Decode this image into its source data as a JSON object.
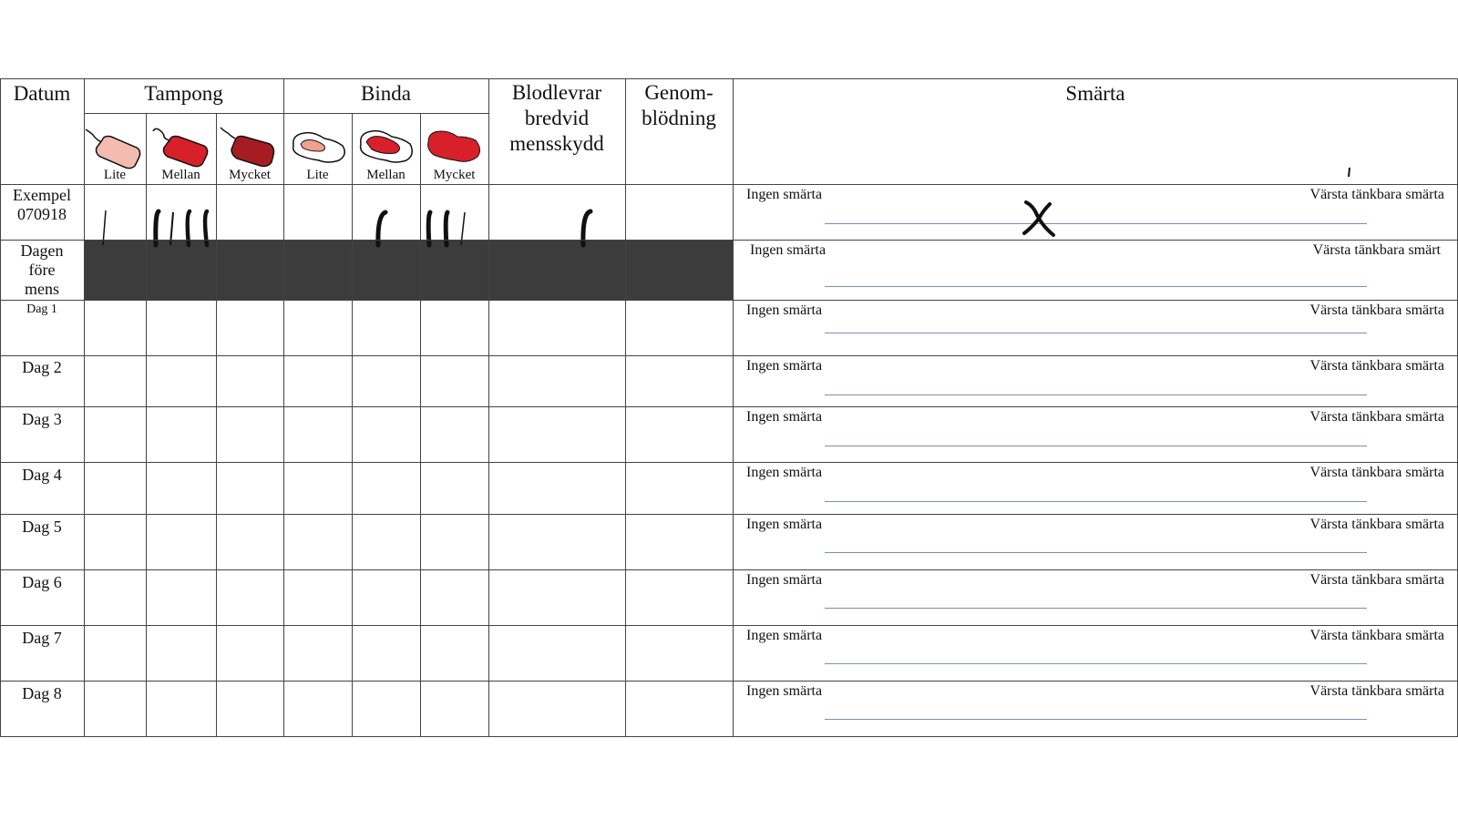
{
  "headers": {
    "datum": "Datum",
    "tampong": "Tampong",
    "binda": "Binda",
    "blodlevrar": [
      "Blodlevrar",
      "bredvid",
      "mensskydd"
    ],
    "genomblodning": [
      "Genom-",
      "blödning"
    ],
    "smarta": "Smärta"
  },
  "levels": {
    "tampong": [
      "Lite",
      "Mellan",
      "Mycket"
    ],
    "binda": [
      "Lite",
      "Mellan",
      "Mycket"
    ]
  },
  "icons": {
    "tampong": [
      "tampon-light-icon",
      "tampon-medium-icon",
      "tampon-heavy-icon"
    ],
    "binda": [
      "pad-light-icon",
      "pad-medium-icon",
      "pad-heavy-icon"
    ]
  },
  "colors": {
    "light": "#f4bbb1",
    "medium": "#d8202a",
    "heavy": "#a51d22",
    "shade": "#3c3c3c",
    "pain_line": "#7d8fb2"
  },
  "rows": [
    {
      "label": [
        "Exempel",
        "070918"
      ],
      "left": "Ingen smärta",
      "right": "Värsta tänkbara smärta",
      "shaded": false
    },
    {
      "label": [
        "Dagen",
        "före",
        "mens"
      ],
      "left": "Ingen smärta",
      "right": "Värsta tänkbara smärt",
      "shaded": true
    },
    {
      "label": [
        "Dag 1"
      ],
      "left": "Ingen smärta",
      "right": "Värsta tänkbara smärta",
      "shaded": false
    },
    {
      "label": [
        "Dag 2"
      ],
      "left": "Ingen smärta",
      "right": "Värsta tänkbara smärta",
      "shaded": false
    },
    {
      "label": [
        "Dag 3"
      ],
      "left": "Ingen smärta",
      "right": "Värsta tänkbara smärta",
      "shaded": false
    },
    {
      "label": [
        "Dag 4"
      ],
      "left": "Ingen smärta",
      "right": "Värsta tänkbara smärta",
      "shaded": false
    },
    {
      "label": [
        "Dag 5"
      ],
      "left": "Ingen smärta",
      "right": "Värsta tänkbara smärta",
      "shaded": false
    },
    {
      "label": [
        "Dag 6"
      ],
      "left": "Ingen smärta",
      "right": "Värsta tänkbara smärta",
      "shaded": false
    },
    {
      "label": [
        "Dag 7"
      ],
      "left": "Ingen smärta",
      "right": "Värsta tänkbara smärta",
      "shaded": false
    },
    {
      "label": [
        "Dag 8"
      ],
      "left": "Ingen smärta",
      "right": "Värsta tänkbara smärta",
      "shaded": false
    }
  ],
  "example": {
    "tally": {
      "tampong_lite": 1,
      "tampong_mellan": 4,
      "tampong_mycket": 0,
      "binda_lite": 0,
      "binda_mellan": 1,
      "binda_mycket": 3,
      "blodlevrar": 1,
      "genomblodning": 0
    },
    "pain_mark": "X",
    "pain_level_fraction": 0.4
  }
}
